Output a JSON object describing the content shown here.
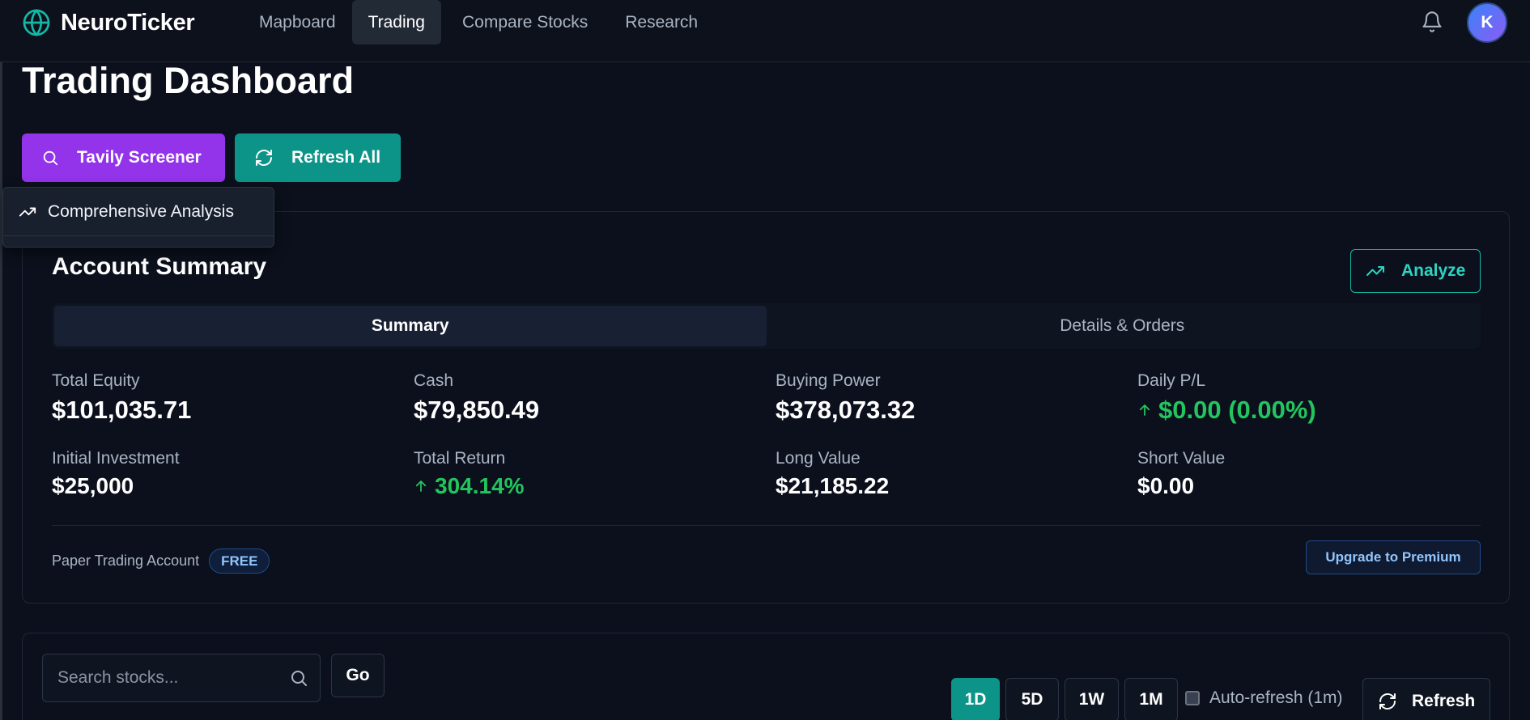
{
  "header": {
    "brand": "NeuroTicker",
    "nav": [
      {
        "label": "Mapboard"
      },
      {
        "label": "Trading"
      },
      {
        "label": "Compare Stocks"
      },
      {
        "label": "Research"
      }
    ],
    "active_nav": "Trading",
    "avatar_initial": "K"
  },
  "page": {
    "title": "Trading Dashboard",
    "screener_label": "Tavily Screener",
    "refresh_all_label": "Refresh All",
    "dropdown": {
      "item": "Comprehensive Analysis"
    }
  },
  "account": {
    "title": "Account Summary",
    "analyze_label": "Analyze",
    "tabs": [
      {
        "label": "Summary"
      },
      {
        "label": "Details & Orders"
      }
    ],
    "active_tab": "Summary",
    "stats": [
      {
        "label": "Total Equity",
        "value": "$101,035.71"
      },
      {
        "label": "Cash",
        "value": "$79,850.49"
      },
      {
        "label": "Buying Power",
        "value": "$378,073.32"
      },
      {
        "label": "Daily P/L",
        "value": "$0.00 (0.00%)"
      },
      {
        "label": "Initial Investment",
        "value": "$25,000"
      },
      {
        "label": "Total Return",
        "value": "304.14%"
      },
      {
        "label": "Long Value",
        "value": "$21,185.22"
      },
      {
        "label": "Short Value",
        "value": "$0.00"
      }
    ],
    "account_type": "Paper Trading Account",
    "plan_badge": "FREE",
    "upgrade_label": "Upgrade to Premium"
  },
  "market": {
    "search_placeholder": "Search stocks...",
    "go_label": "Go",
    "ranges": [
      {
        "label": "1D"
      },
      {
        "label": "5D"
      },
      {
        "label": "1W"
      },
      {
        "label": "1M"
      }
    ],
    "active_range": "1D",
    "auto_refresh_label": "Auto-refresh (1m)",
    "auto_refresh_checked": false,
    "refresh_label": "Refresh"
  },
  "colors": {
    "accent_purple": "#9333ea",
    "accent_teal": "#0d9488",
    "positive": "#22c55e",
    "background": "#0b101c"
  }
}
